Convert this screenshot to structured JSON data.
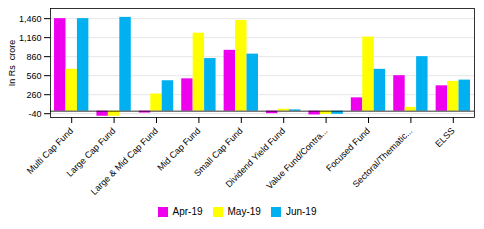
{
  "chart_data": {
    "type": "bar",
    "ylabel": "In Rs  crore",
    "categories": [
      "Multi Cap Fund",
      "Large Cap Fund",
      "Large & Mid Cap Fund",
      "Mid Cap Fund",
      "Small Cap Fund",
      "Dividend Yield Fund",
      "Value Fund/Contra...",
      "Focused Fund",
      "Sectoral/Thematic...",
      "ELSS"
    ],
    "series": [
      {
        "name": "Apr-19",
        "color": "#ee00ee",
        "values": [
          1460,
          -80,
          -30,
          510,
          960,
          -40,
          -60,
          210,
          560,
          400
        ]
      },
      {
        "name": "May-19",
        "color": "#ffff00",
        "values": [
          660,
          -80,
          270,
          1230,
          1430,
          30,
          -50,
          1170,
          60,
          470
        ]
      },
      {
        "name": "Jun-19",
        "color": "#00b0f0",
        "values": [
          1460,
          1480,
          480,
          830,
          900,
          20,
          -50,
          660,
          860,
          490
        ]
      }
    ],
    "ylim": [
      -100,
      1620
    ],
    "yticks": [
      -40,
      260,
      560,
      860,
      {
        "value": 1160,
        "label": "1,160"
      },
      {
        "value": 1460,
        "label": "1,460"
      }
    ],
    "grid": true,
    "legend": "bottom"
  }
}
